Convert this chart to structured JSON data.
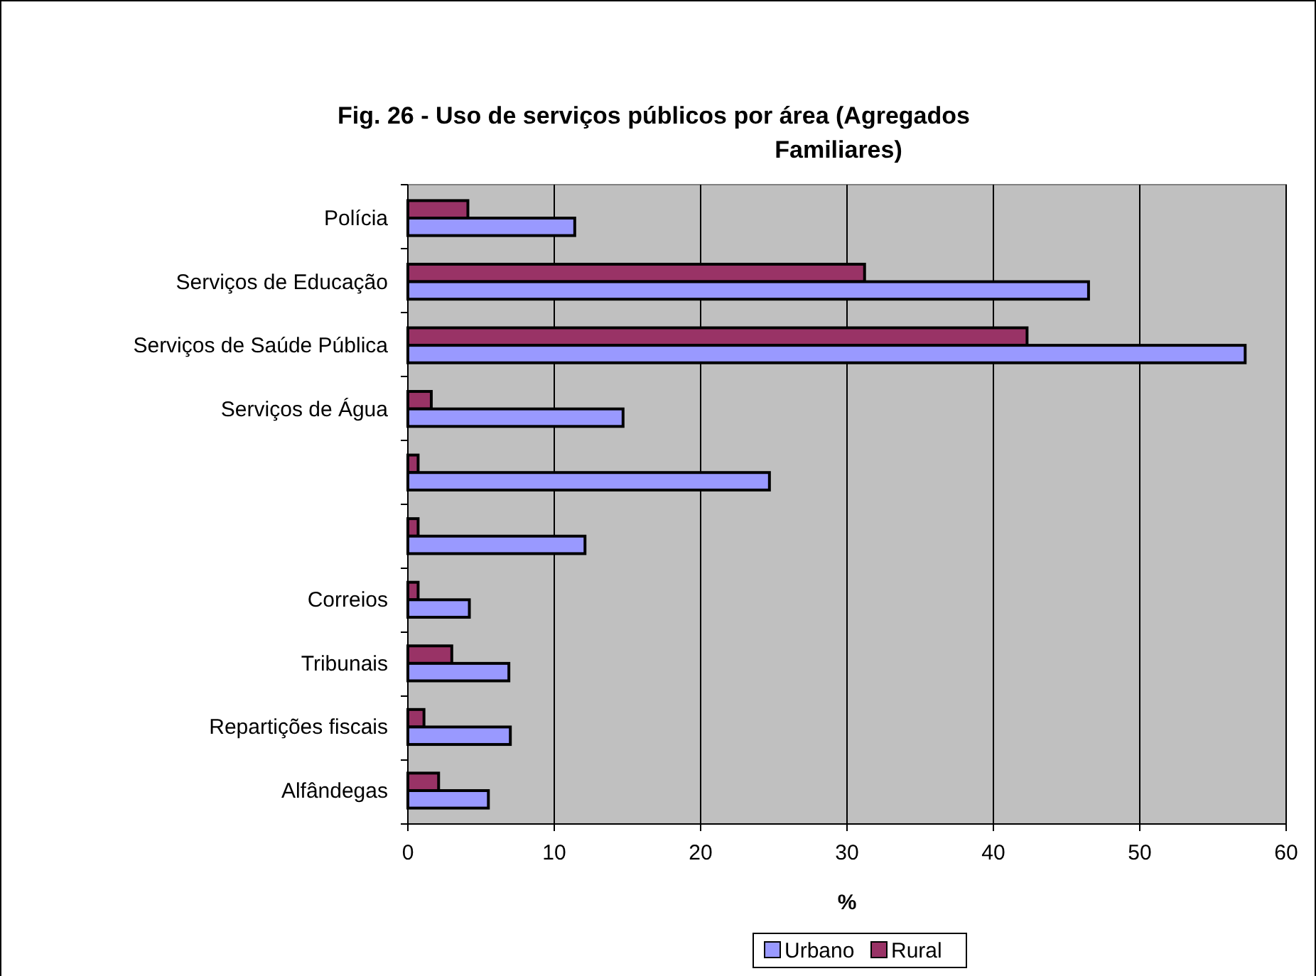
{
  "chart_data": {
    "type": "bar",
    "orientation": "horizontal",
    "title": "Fig. 26 - Uso de serviços públicos por área (Agregados Familiares)",
    "xlabel": "%",
    "categories": [
      "Polícia",
      "Serviços de Educação",
      "Serviços de Saúde Pública",
      "Serviços de Água",
      null,
      null,
      "Correios",
      "Tribunais",
      "Repartições fiscais",
      "Alfândegas"
    ],
    "series": [
      {
        "name": "Rural",
        "color": "#993366",
        "values": [
          4.1,
          31.2,
          42.3,
          1.6,
          0.7,
          0.7,
          0.7,
          3.0,
          1.1,
          2.1
        ]
      },
      {
        "name": "Urbano",
        "color": "#9999ff",
        "values": [
          11.4,
          46.5,
          57.2,
          14.7,
          24.7,
          12.1,
          4.2,
          6.9,
          7.0,
          5.5
        ]
      }
    ],
    "xlim": [
      0,
      60
    ],
    "xticks": [
      0,
      10,
      20,
      30,
      40,
      50,
      60
    ],
    "grid": "x",
    "legend": "bottom"
  }
}
